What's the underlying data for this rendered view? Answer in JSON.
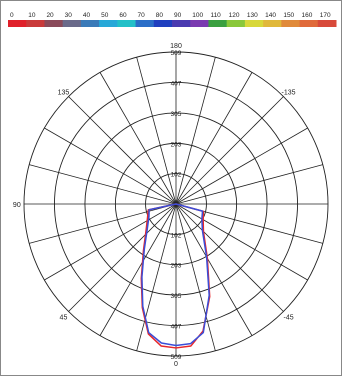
{
  "chart_data": {
    "type": "polar-line",
    "angle_zero": "bottom",
    "angular_ticks": [
      {
        "value": "180",
        "angle": 180
      },
      {
        "value": "135",
        "angle": 135
      },
      {
        "value": "-135",
        "angle": -135
      },
      {
        "value": "90",
        "angle": 90
      },
      {
        "value": "45",
        "angle": 45
      },
      {
        "value": "-45",
        "angle": -45
      },
      {
        "value": "0",
        "angle": 0
      }
    ],
    "radial_max": 509,
    "radial_rings": [
      102,
      203,
      305,
      407,
      509
    ],
    "radial_tick_labels": [
      "102",
      "203",
      "305",
      "407",
      "509"
    ],
    "spoke_step_deg": 15,
    "legend_colors": [
      "#e0202a",
      "#c93a3a",
      "#8a4a5a",
      "#6a6a8a",
      "#3a7ab8",
      "#27a8d8",
      "#23c0c8",
      "#2a6ec8",
      "#1f3fbf",
      "#4a3ab0",
      "#7a3ab0",
      "#3aa040",
      "#8ac83a",
      "#d8d83a",
      "#e0b83a",
      "#e08a3a",
      "#e06a3a",
      "#d84a3a"
    ],
    "legend_values": [
      "0",
      "10",
      "20",
      "30",
      "40",
      "50",
      "60",
      "70",
      "80",
      "90",
      "100",
      "110",
      "120",
      "130",
      "140",
      "150",
      "160",
      "170"
    ],
    "series": [
      {
        "color": "#e8262a",
        "points": [
          {
            "angle": -90,
            "r": 0
          },
          {
            "angle": -75,
            "r": 95
          },
          {
            "angle": -60,
            "r": 105
          },
          {
            "angle": -45,
            "r": 130
          },
          {
            "angle": -30,
            "r": 210
          },
          {
            "angle": -20,
            "r": 330
          },
          {
            "angle": -12,
            "r": 435
          },
          {
            "angle": -6,
            "r": 478
          },
          {
            "angle": 0,
            "r": 482
          },
          {
            "angle": 6,
            "r": 478
          },
          {
            "angle": 12,
            "r": 445
          },
          {
            "angle": 18,
            "r": 365
          },
          {
            "angle": 25,
            "r": 275
          },
          {
            "angle": 35,
            "r": 190
          },
          {
            "angle": 50,
            "r": 130
          },
          {
            "angle": 65,
            "r": 105
          },
          {
            "angle": 78,
            "r": 95
          },
          {
            "angle": 90,
            "r": 0
          }
        ]
      },
      {
        "color": "#3a4ed8",
        "points": [
          {
            "angle": -90,
            "r": 0
          },
          {
            "angle": -75,
            "r": 92
          },
          {
            "angle": -60,
            "r": 100
          },
          {
            "angle": -45,
            "r": 125
          },
          {
            "angle": -30,
            "r": 205
          },
          {
            "angle": -20,
            "r": 325
          },
          {
            "angle": -12,
            "r": 440
          },
          {
            "angle": -6,
            "r": 470
          },
          {
            "angle": 0,
            "r": 474
          },
          {
            "angle": 6,
            "r": 468
          },
          {
            "angle": 12,
            "r": 440
          },
          {
            "angle": 18,
            "r": 360
          },
          {
            "angle": 25,
            "r": 270
          },
          {
            "angle": 35,
            "r": 185
          },
          {
            "angle": 50,
            "r": 125
          },
          {
            "angle": 65,
            "r": 100
          },
          {
            "angle": 78,
            "r": 92
          },
          {
            "angle": 90,
            "r": 0
          }
        ]
      }
    ],
    "grid": true,
    "legend": "top"
  }
}
